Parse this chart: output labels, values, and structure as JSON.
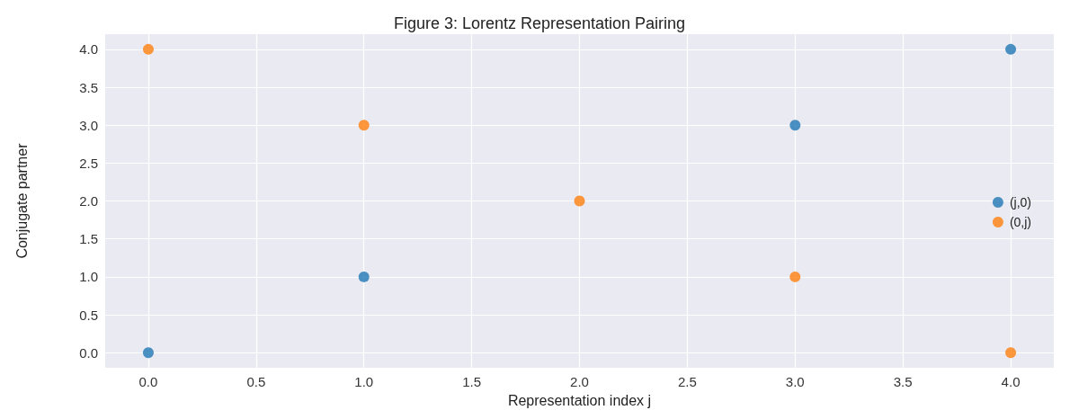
{
  "chart_data": {
    "type": "scatter",
    "title": "Figure 3: Lorentz Representation Pairing",
    "xlabel": "Representation index j",
    "ylabel": "Conjugate partner",
    "series": [
      {
        "name": "(j,0)",
        "color": "#1f77b4",
        "x": [
          0,
          1,
          2,
          3,
          4
        ],
        "values": [
          0,
          1,
          null,
          3,
          4
        ]
      },
      {
        "name": "(0,j)",
        "color": "#ff7f0e",
        "x": [
          0,
          1,
          2,
          3,
          4
        ],
        "values": [
          4,
          3,
          2,
          1,
          0
        ]
      }
    ],
    "xlim": [
      -0.2,
      4.2
    ],
    "ylim": [
      -0.2,
      4.2
    ],
    "xticks": [
      {
        "value": 0,
        "label": "0.0"
      },
      {
        "value": 0.5,
        "label": "0.5"
      },
      {
        "value": 1,
        "label": "1.0"
      },
      {
        "value": 1.5,
        "label": "1.5"
      },
      {
        "value": 2,
        "label": "2.0"
      },
      {
        "value": 2.5,
        "label": "2.5"
      },
      {
        "value": 3,
        "label": "3.0"
      },
      {
        "value": 3.5,
        "label": "3.5"
      },
      {
        "value": 4,
        "label": "4.0"
      }
    ],
    "yticks": [
      {
        "value": 0,
        "label": "0.0"
      },
      {
        "value": 0.5,
        "label": "0.5"
      },
      {
        "value": 1,
        "label": "1.0"
      },
      {
        "value": 1.5,
        "label": "1.5"
      },
      {
        "value": 2,
        "label": "2.0"
      },
      {
        "value": 2.5,
        "label": "2.5"
      },
      {
        "value": 3,
        "label": "3.0"
      },
      {
        "value": 3.5,
        "label": "3.5"
      },
      {
        "value": 4,
        "label": "4.0"
      }
    ],
    "grid": true,
    "legend": "right",
    "marker": "circle"
  }
}
